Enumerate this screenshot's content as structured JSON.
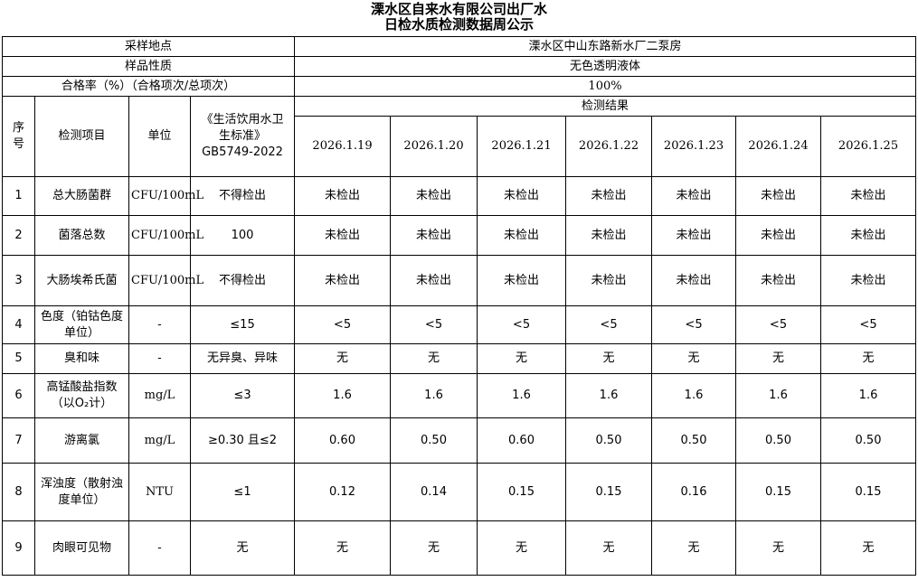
{
  "title": {
    "line1": "溧水区自来水有限公司出厂水",
    "line2": "日检水质检测数据周公示"
  },
  "info": [
    {
      "label": "采样地点",
      "value": "溧水区中山东路新水厂二泵房"
    },
    {
      "label": "样品性质",
      "value": "无色透明液体"
    },
    {
      "label": "合格率（%）（合格项次/总项次）",
      "value": "100%"
    }
  ],
  "header": {
    "seq": "序号",
    "item": "检测项目",
    "unit": "单位",
    "standard": "《生活饮用水卫生标准》GB5749-2022",
    "results": "检测结果",
    "dates": [
      "2026.1.19",
      "2026.1.20",
      "2026.1.21",
      "2026.1.22",
      "2026.1.23",
      "2026.1.24",
      "2026.1.25"
    ]
  },
  "rows": [
    {
      "seq": "1",
      "item": "总大肠菌群",
      "unit": "CFU/100mL",
      "standard": "不得检出",
      "values": [
        "未检出",
        "未检出",
        "未检出",
        "未检出",
        "未检出",
        "未检出",
        "未检出"
      ]
    },
    {
      "seq": "2",
      "item": "菌落总数",
      "unit": "CFU/100mL",
      "standard": "100",
      "values": [
        "未检出",
        "未检出",
        "未检出",
        "未检出",
        "未检出",
        "未检出",
        "未检出"
      ]
    },
    {
      "seq": "3",
      "item": "大肠埃希氏菌",
      "unit": "CFU/100mL",
      "standard": "不得检出",
      "values": [
        "未检出",
        "未检出",
        "未检出",
        "未检出",
        "未检出",
        "未检出",
        "未检出"
      ]
    },
    {
      "seq": "4",
      "item": "色度（铂钴色度单位）",
      "unit": "-",
      "standard": "≤15",
      "values": [
        "<5",
        "<5",
        "<5",
        "<5",
        "<5",
        "<5",
        "<5"
      ]
    },
    {
      "seq": "5",
      "item": "臭和味",
      "unit": "-",
      "standard": "无异臭、异味",
      "values": [
        "无",
        "无",
        "无",
        "无",
        "无",
        "无",
        "无"
      ]
    },
    {
      "seq": "6",
      "item": "高锰酸盐指数（以O₂计）",
      "unit": "mg/L",
      "standard": "≤3",
      "values": [
        "1.6",
        "1.6",
        "1.6",
        "1.6",
        "1.6",
        "1.6",
        "1.6"
      ]
    },
    {
      "seq": "7",
      "item": "游离氯",
      "unit": "mg/L",
      "standard": "≥0.30 且≤2",
      "values": [
        "0.60",
        "0.50",
        "0.60",
        "0.50",
        "0.50",
        "0.50",
        "0.50"
      ]
    },
    {
      "seq": "8",
      "item": "浑浊度（散射浊度单位）",
      "unit": "NTU",
      "standard": "≤1",
      "values": [
        "0.12",
        "0.14",
        "0.15",
        "0.15",
        "0.16",
        "0.15",
        "0.15"
      ]
    },
    {
      "seq": "9",
      "item": "肉眼可见物",
      "unit": "-",
      "standard": "无",
      "values": [
        "无",
        "无",
        "无",
        "无",
        "无",
        "无",
        "无"
      ]
    }
  ]
}
